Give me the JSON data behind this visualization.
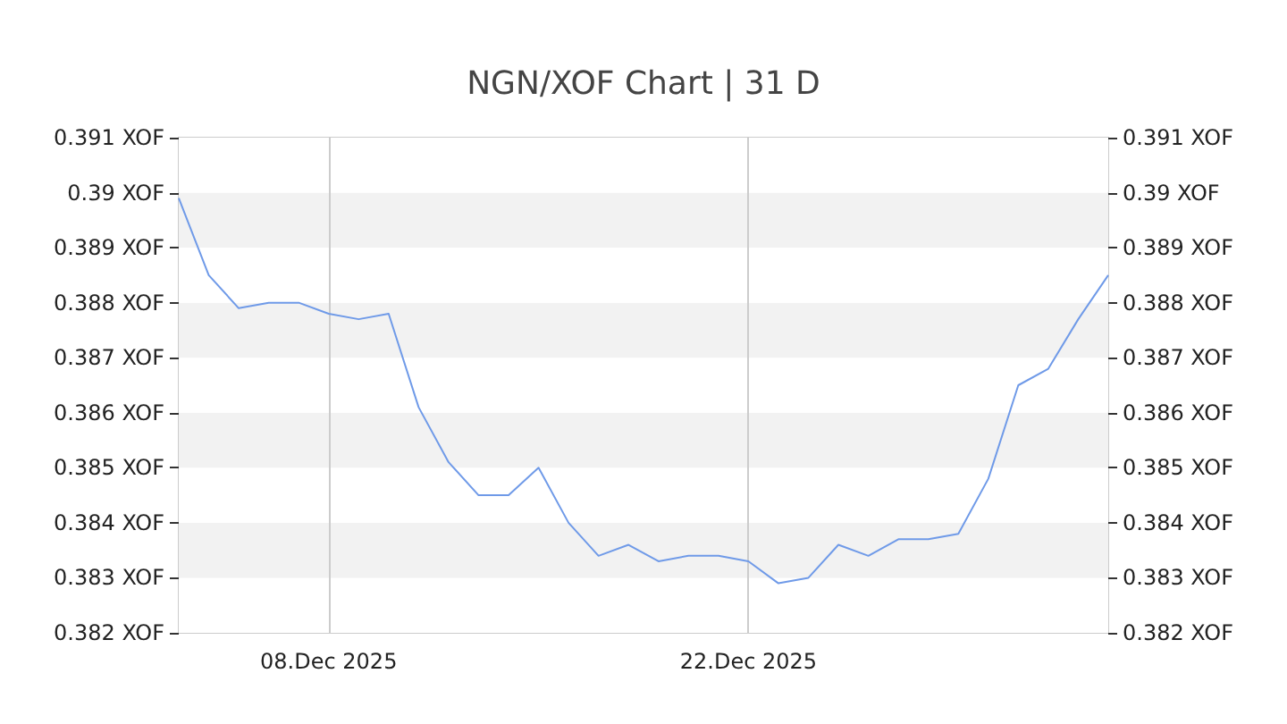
{
  "chart_data": {
    "type": "line",
    "title": "NGN/XOF Chart | 31 D",
    "x": [
      "2025-12-03",
      "2025-12-04",
      "2025-12-05",
      "2025-12-06",
      "2025-12-07",
      "2025-12-08",
      "2025-12-09",
      "2025-12-10",
      "2025-12-11",
      "2025-12-12",
      "2025-12-13",
      "2025-12-14",
      "2025-12-15",
      "2025-12-16",
      "2025-12-17",
      "2025-12-18",
      "2025-12-19",
      "2025-12-20",
      "2025-12-21",
      "2025-12-22",
      "2025-12-23",
      "2025-12-24",
      "2025-12-25",
      "2025-12-26",
      "2025-12-27",
      "2025-12-28",
      "2025-12-29",
      "2025-12-30",
      "2025-12-31",
      "2026-01-01",
      "2026-01-02",
      "2026-01-03"
    ],
    "series": [
      {
        "color": "#6f9ae8",
        "values": [
          0.3899,
          0.3885,
          0.3879,
          0.388,
          0.388,
          0.3878,
          0.3877,
          0.3878,
          0.3861,
          0.3851,
          0.3845,
          0.3845,
          0.385,
          0.384,
          0.3834,
          0.3836,
          0.3833,
          0.3834,
          0.3834,
          0.3833,
          0.3829,
          0.383,
          0.3836,
          0.3834,
          0.3837,
          0.3837,
          0.3838,
          0.3848,
          0.3865,
          0.3868,
          0.3877,
          0.3885
        ]
      }
    ],
    "xlim": [
      "2025-12-03",
      "2026-01-03"
    ],
    "xticks": [
      {
        "value": "2025-12-08",
        "label": "08.Dec 2025"
      },
      {
        "value": "2025-12-22",
        "label": "22.Dec 2025"
      }
    ],
    "ylim": [
      0.382,
      0.391
    ],
    "yticks": [
      {
        "value": 0.382,
        "label": "0.382 XOF"
      },
      {
        "value": 0.383,
        "label": "0.383 XOF"
      },
      {
        "value": 0.384,
        "label": "0.384 XOF"
      },
      {
        "value": 0.385,
        "label": "0.385 XOF"
      },
      {
        "value": 0.386,
        "label": "0.386 XOF"
      },
      {
        "value": 0.387,
        "label": "0.387 XOF"
      },
      {
        "value": 0.388,
        "label": "0.388 XOF"
      },
      {
        "value": 0.389,
        "label": "0.389 XOF"
      },
      {
        "value": 0.39,
        "label": "0.39 XOF"
      },
      {
        "value": 0.391,
        "label": "0.391 XOF"
      }
    ],
    "y2lim": [
      0.382,
      0.391
    ],
    "y2ticks": [
      {
        "value": 0.382,
        "label": "0.382 XOF"
      },
      {
        "value": 0.383,
        "label": "0.383 XOF"
      },
      {
        "value": 0.384,
        "label": "0.384 XOF"
      },
      {
        "value": 0.385,
        "label": "0.385 XOF"
      },
      {
        "value": 0.386,
        "label": "0.386 XOF"
      },
      {
        "value": 0.387,
        "label": "0.387 XOF"
      },
      {
        "value": 0.388,
        "label": "0.388 XOF"
      },
      {
        "value": 0.389,
        "label": "0.389 XOF"
      },
      {
        "value": 0.39,
        "label": "0.39 XOF"
      },
      {
        "value": 0.391,
        "label": "0.391 XOF"
      }
    ],
    "grid": true,
    "marker": "none",
    "line_style": "solid"
  }
}
